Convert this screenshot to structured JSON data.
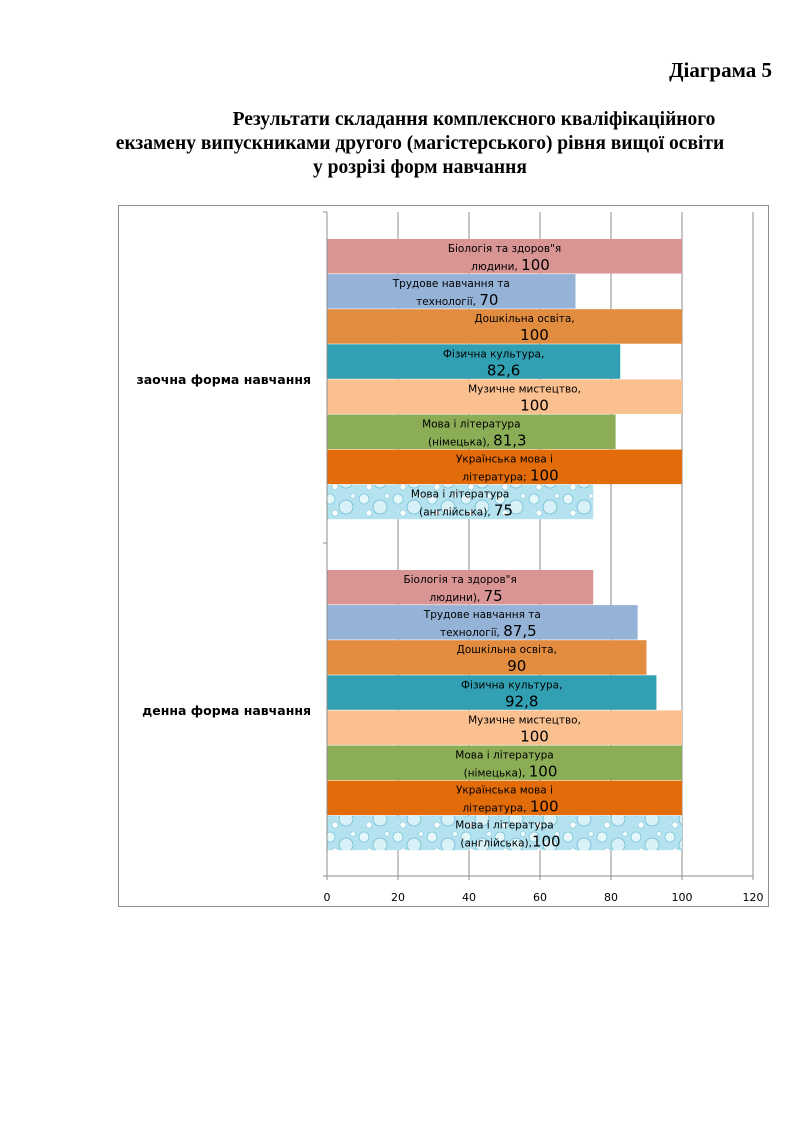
{
  "page": {
    "diagram_label": "Діаграма 5",
    "title_line1": "Результати складання комплексного кваліфікаційного",
    "title_line2": "екзамену випускниками другого (магістерського) рівня вищої освіти",
    "title_line3": "у розрізі форм навчання"
  },
  "chart_data": {
    "type": "bar",
    "orientation": "horizontal",
    "title": "",
    "xlabel": "",
    "ylabel": "",
    "xlim": [
      0,
      120
    ],
    "x_ticks": [
      "0",
      "20",
      "40",
      "60",
      "80",
      "100",
      "120"
    ],
    "grid": true,
    "legend": "none",
    "groups": [
      {
        "name": "заочна форма навчання",
        "bars": [
          {
            "series": "Біологія та здоров\"я людини",
            "value": 100,
            "label_line1": "Біологія та здоров\"я",
            "label_line2": "людини, ",
            "value_text": "100",
            "color": "#d99594",
            "pattern": false
          },
          {
            "series": "Трудове навчання та технології",
            "value": 70,
            "label_line1": "Трудове навчання та",
            "label_line2": "технології, ",
            "value_text": "70",
            "color": "#95b3d7",
            "pattern": false
          },
          {
            "series": "Дошкільна освіта",
            "value": 100,
            "label_line1": "Дошкільна освіта,",
            "label_line2": "",
            "value_text": "100",
            "color": "#e28c40",
            "pattern": false
          },
          {
            "series": "Фізична культура",
            "value": 82.6,
            "label_line1": "Фізична культура,",
            "label_line2": "",
            "value_text": "82,6",
            "color": "#31a0b2",
            "pattern": false
          },
          {
            "series": "Музичне мистецтво",
            "value": 100,
            "label_line1": "Музичне мистецтво,",
            "label_line2": "",
            "value_text": "100",
            "color": "#fac090",
            "pattern": false
          },
          {
            "series": "Мова і література (німецька)",
            "value": 81.3,
            "label_line1": "Мова і література",
            "label_line2": "(німецька), ",
            "value_text": "81,3",
            "color": "#8bad55",
            "pattern": false
          },
          {
            "series": "Українська мова і література",
            "value": 100,
            "label_line1": "Українська мова і",
            "label_line2": "література; ",
            "value_text": "100",
            "color": "#e36c0a",
            "pattern": false
          },
          {
            "series": "Мова і література (англійська)",
            "value": 75,
            "label_line1": "Мова і література",
            "label_line2": "(англійська), ",
            "value_text": "75",
            "color": "#a5dce9",
            "pattern": true
          }
        ]
      },
      {
        "name": "денна форма навчання",
        "bars": [
          {
            "series": "Біологія та здоров\"я людини",
            "value": 75,
            "label_line1": "Біологія та здоров\"я",
            "label_line2": "людини), ",
            "value_text": "75",
            "color": "#d99594",
            "pattern": false
          },
          {
            "series": "Трудове навчання та технології",
            "value": 87.5,
            "label_line1": "Трудове навчання та",
            "label_line2": "технології, ",
            "value_text": "87,5",
            "color": "#95b3d7",
            "pattern": false
          },
          {
            "series": "Дошкільна освіта",
            "value": 90,
            "label_line1": "Дошкільна освіта,",
            "label_line2": "",
            "value_text": "90",
            "color": "#e28c40",
            "pattern": false
          },
          {
            "series": "Фізична культура",
            "value": 92.8,
            "label_line1": "Фізична культура,",
            "label_line2": "",
            "value_text": "92,8",
            "color": "#31a0b2",
            "pattern": false
          },
          {
            "series": "Музичне мистецтво",
            "value": 100,
            "label_line1": "Музичне мистецтво,",
            "label_line2": "",
            "value_text": "100",
            "color": "#fac090",
            "pattern": false
          },
          {
            "series": "Мова і література (німецька)",
            "value": 100,
            "label_line1": "Мова і література",
            "label_line2": "(німецька), ",
            "value_text": "100",
            "color": "#8bad55",
            "pattern": false
          },
          {
            "series": "Українська мова і література",
            "value": 100,
            "label_line1": "Українська мова і",
            "label_line2": "література, ",
            "value_text": "100",
            "color": "#e36c0a",
            "pattern": false
          },
          {
            "series": "Мова і література (англійська)",
            "value": 100,
            "label_line1": "Мова і література",
            "label_line2": "(англійська),",
            "value_text": "100",
            "color": "#a5dce9",
            "pattern": true
          }
        ]
      }
    ]
  }
}
